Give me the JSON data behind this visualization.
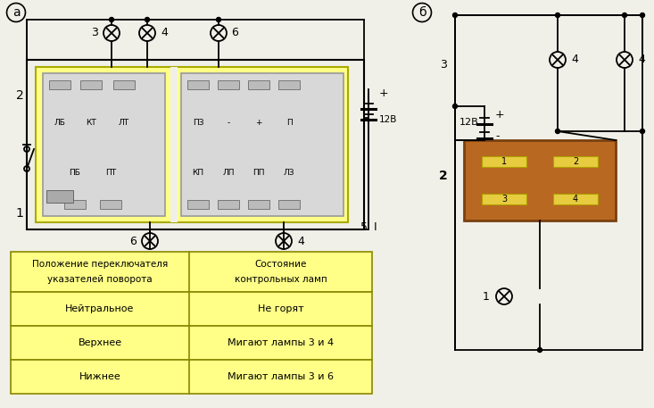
{
  "bg_color": "#f0f0e8",
  "table_bg": "#ffff88",
  "table_border": "#888800",
  "table_header": [
    "Положение переключателя\nуказателей поворота",
    "Состояние\nконтрольных ламп"
  ],
  "table_rows": [
    [
      "Нейтральное",
      "Не горят"
    ],
    [
      "Верхнее",
      "Мигают лампы 3 и 4"
    ],
    [
      "Нижнее",
      "Мигают лампы 3 и 6"
    ]
  ],
  "relay_left_top": [
    "ЛБ",
    "КТ",
    "ЛТ"
  ],
  "relay_left_bot": [
    "ПБ",
    "ПТ"
  ],
  "relay_right_top": [
    "ПЗ",
    "-",
    "+",
    "П"
  ],
  "relay_right_bot": [
    "КП",
    "ЛП",
    "ПП",
    "ЛЗ"
  ],
  "voltage": "12В"
}
